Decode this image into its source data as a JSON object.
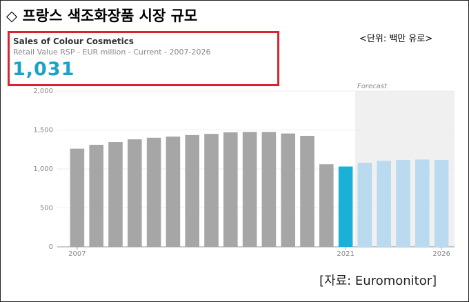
{
  "chart_data": {
    "type": "bar",
    "title": "◇ 프랑스 색조화장품 시장 규모",
    "unit_note": "<단위: 백만 유로>",
    "subtitle": "Sales of Colour Cosmetics",
    "description": "Retail Value RSP - EUR million - Current - 2007-2026",
    "headline": "1,031",
    "forecast_label": "Forecast",
    "source": "[자료: Euromonitor]",
    "categories": [
      "2007",
      null,
      null,
      null,
      null,
      null,
      null,
      null,
      null,
      null,
      null,
      null,
      null,
      null,
      "2021",
      null,
      null,
      null,
      null,
      "2026"
    ],
    "values": [
      1260,
      1310,
      1345,
      1380,
      1400,
      1415,
      1435,
      1450,
      1470,
      1475,
      1475,
      1455,
      1425,
      1060,
      1031,
      1080,
      1105,
      1115,
      1120,
      1115
    ],
    "colors": [
      "#a6a6a6",
      "#a6a6a6",
      "#a6a6a6",
      "#a6a6a6",
      "#a6a6a6",
      "#a6a6a6",
      "#a6a6a6",
      "#a6a6a6",
      "#a6a6a6",
      "#a6a6a6",
      "#a6a6a6",
      "#a6a6a6",
      "#a6a6a6",
      "#a6a6a6",
      "#1ab0d8",
      "#b9daef",
      "#b9daef",
      "#b9daef",
      "#b9daef",
      "#b9daef"
    ],
    "ylim": [
      0,
      2000
    ],
    "yticks": [
      0,
      500,
      {
        "value": 1000,
        "label": "1,000"
      },
      {
        "value": 1500,
        "label": "1,500"
      },
      {
        "value": 2000,
        "label": "2,000"
      }
    ],
    "grid": true
  }
}
